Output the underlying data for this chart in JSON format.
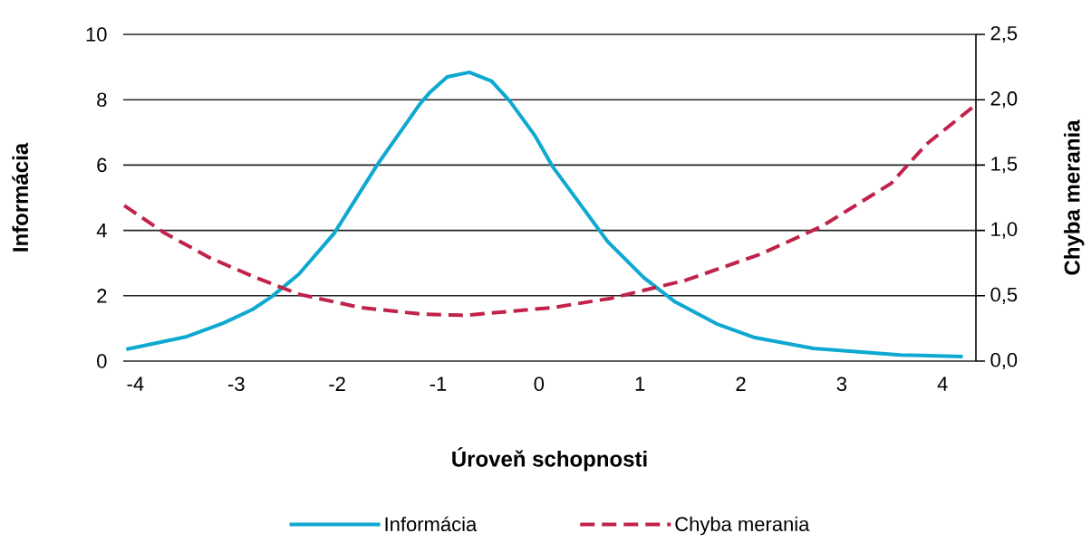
{
  "chart_data": {
    "type": "line",
    "xlabel": "Úroveň schopnosti",
    "ylabel": "Informácia",
    "y2label": "Chyba merania",
    "xlim": [
      -4.12,
      4.33
    ],
    "xticks": [
      -4,
      -3,
      -2,
      -1,
      0,
      1,
      2,
      3,
      4
    ],
    "ylim": [
      0,
      10
    ],
    "yticks": [
      0,
      2,
      4,
      6,
      8,
      10
    ],
    "y2lim": [
      0,
      2.5
    ],
    "y2ticks": [
      {
        "value": 0,
        "label": "0,0"
      },
      {
        "value": 0.5,
        "label": "0,5"
      },
      {
        "value": 1,
        "label": "1,0"
      },
      {
        "value": 1.5,
        "label": "1,5"
      },
      {
        "value": 2,
        "label": "2,0"
      },
      {
        "value": 2.5,
        "label": "2,5"
      }
    ],
    "grid": "y",
    "legend": "bottom",
    "series": [
      {
        "name": "Informácia",
        "color": "#0ea8d0",
        "line_style": "solid",
        "x": [
          -4.09,
          -3.49,
          -3.13,
          -2.84,
          -2.65,
          -2.38,
          -2.03,
          -1.6,
          -1.18,
          -1.08,
          -0.91,
          -0.69,
          -0.47,
          -0.29,
          -0.04,
          0.14,
          0.68,
          1.04,
          1.34,
          1.76,
          2.14,
          2.72,
          3.58,
          4.2
        ],
        "values": [
          0.36,
          0.75,
          1.16,
          1.58,
          1.97,
          2.66,
          3.91,
          6.02,
          7.87,
          8.23,
          8.7,
          8.84,
          8.57,
          7.96,
          6.9,
          5.93,
          3.66,
          2.55,
          1.83,
          1.14,
          0.72,
          0.39,
          0.19,
          0.14
        ]
      },
      {
        "name": "Chyba merania",
        "color": "#c0224a",
        "line_style": "dashed",
        "axis": "y2",
        "x": [
          -4.11,
          -3.71,
          -3.26,
          -2.81,
          -2.37,
          -1.77,
          -1.17,
          -0.73,
          0.14,
          0.71,
          1.46,
          2.2,
          2.8,
          3.49,
          3.84,
          4.31
        ],
        "values": [
          1.19,
          0.98,
          0.79,
          0.64,
          0.51,
          0.41,
          0.36,
          0.35,
          0.41,
          0.48,
          0.62,
          0.82,
          1.03,
          1.36,
          1.66,
          1.95
        ]
      }
    ]
  }
}
